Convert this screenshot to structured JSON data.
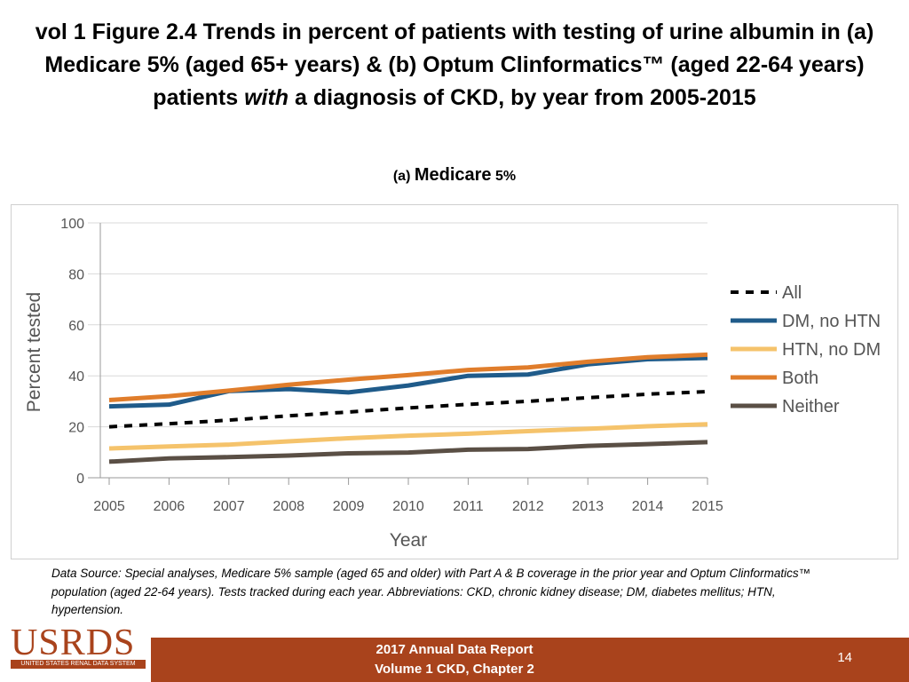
{
  "slide": {
    "title_part1": "vol 1 Figure 2.4 Trends in percent of patients with testing of urine albumin in (a) Medicare 5% (aged 65+ years) & (b) Optum Clinformatics™ (aged 22-64 years) patients ",
    "title_emph": "with",
    "title_part2": " a diagnosis of CKD, by year from 2005-2015",
    "panel_prefix": "(a) ",
    "panel_name": "Medicare",
    "panel_suffix": " 5%"
  },
  "source_text": "Data Source: Special analyses, Medicare 5% sample (aged 65 and older) with Part A & B coverage in the prior year and Optum Clinformatics™ population (aged 22-64 years). Tests tracked during each year. Abbreviations: CKD, chronic kidney disease; DM, diabetes mellitus; HTN, hypertension.",
  "footer": {
    "report_line1": "2017 Annual Data Report",
    "report_line2": "Volume 1 CKD, Chapter 2",
    "page_number": "14",
    "logo_text": "USRDS",
    "logo_subtext": "UNITED STATES RENAL DATA SYSTEM"
  },
  "colors": {
    "brand": "#a9431c"
  },
  "chart_data": {
    "type": "line",
    "title": "",
    "xlabel": "Year",
    "ylabel": "Percent tested",
    "categories": [
      2005,
      2006,
      2007,
      2008,
      2009,
      2010,
      2011,
      2012,
      2013,
      2014,
      2015
    ],
    "ylim": [
      0,
      100
    ],
    "yticks": [
      0,
      20,
      40,
      60,
      80,
      100
    ],
    "grid": "horizontal",
    "legend_position": "right",
    "series": [
      {
        "name": "All",
        "color": "#000000",
        "style": "dashed",
        "values": [
          20,
          21.2,
          22.6,
          24.3,
          25.8,
          27.4,
          28.8,
          30,
          31.4,
          32.8,
          33.8
        ]
      },
      {
        "name": "DM, no HTN",
        "color": "#1f5b8a",
        "style": "solid",
        "values": [
          28,
          28.7,
          34,
          34.8,
          33.5,
          36.2,
          40,
          40.5,
          44.5,
          46.5,
          47
        ]
      },
      {
        "name": "HTN, no DM",
        "color": "#f5c36b",
        "style": "solid",
        "values": [
          11.5,
          12.3,
          13,
          14.3,
          15.5,
          16.5,
          17.3,
          18.3,
          19.2,
          20.2,
          21
        ]
      },
      {
        "name": "Both",
        "color": "#e07d2b",
        "style": "solid",
        "values": [
          30.5,
          32,
          34.2,
          36.5,
          38.5,
          40.3,
          42.3,
          43.3,
          45.5,
          47.3,
          48.3
        ]
      },
      {
        "name": "Neither",
        "color": "#5a4f45",
        "style": "solid",
        "values": [
          6.3,
          7.6,
          8.1,
          8.7,
          9.6,
          9.9,
          11,
          11.3,
          12.5,
          13.2,
          14
        ]
      }
    ]
  }
}
